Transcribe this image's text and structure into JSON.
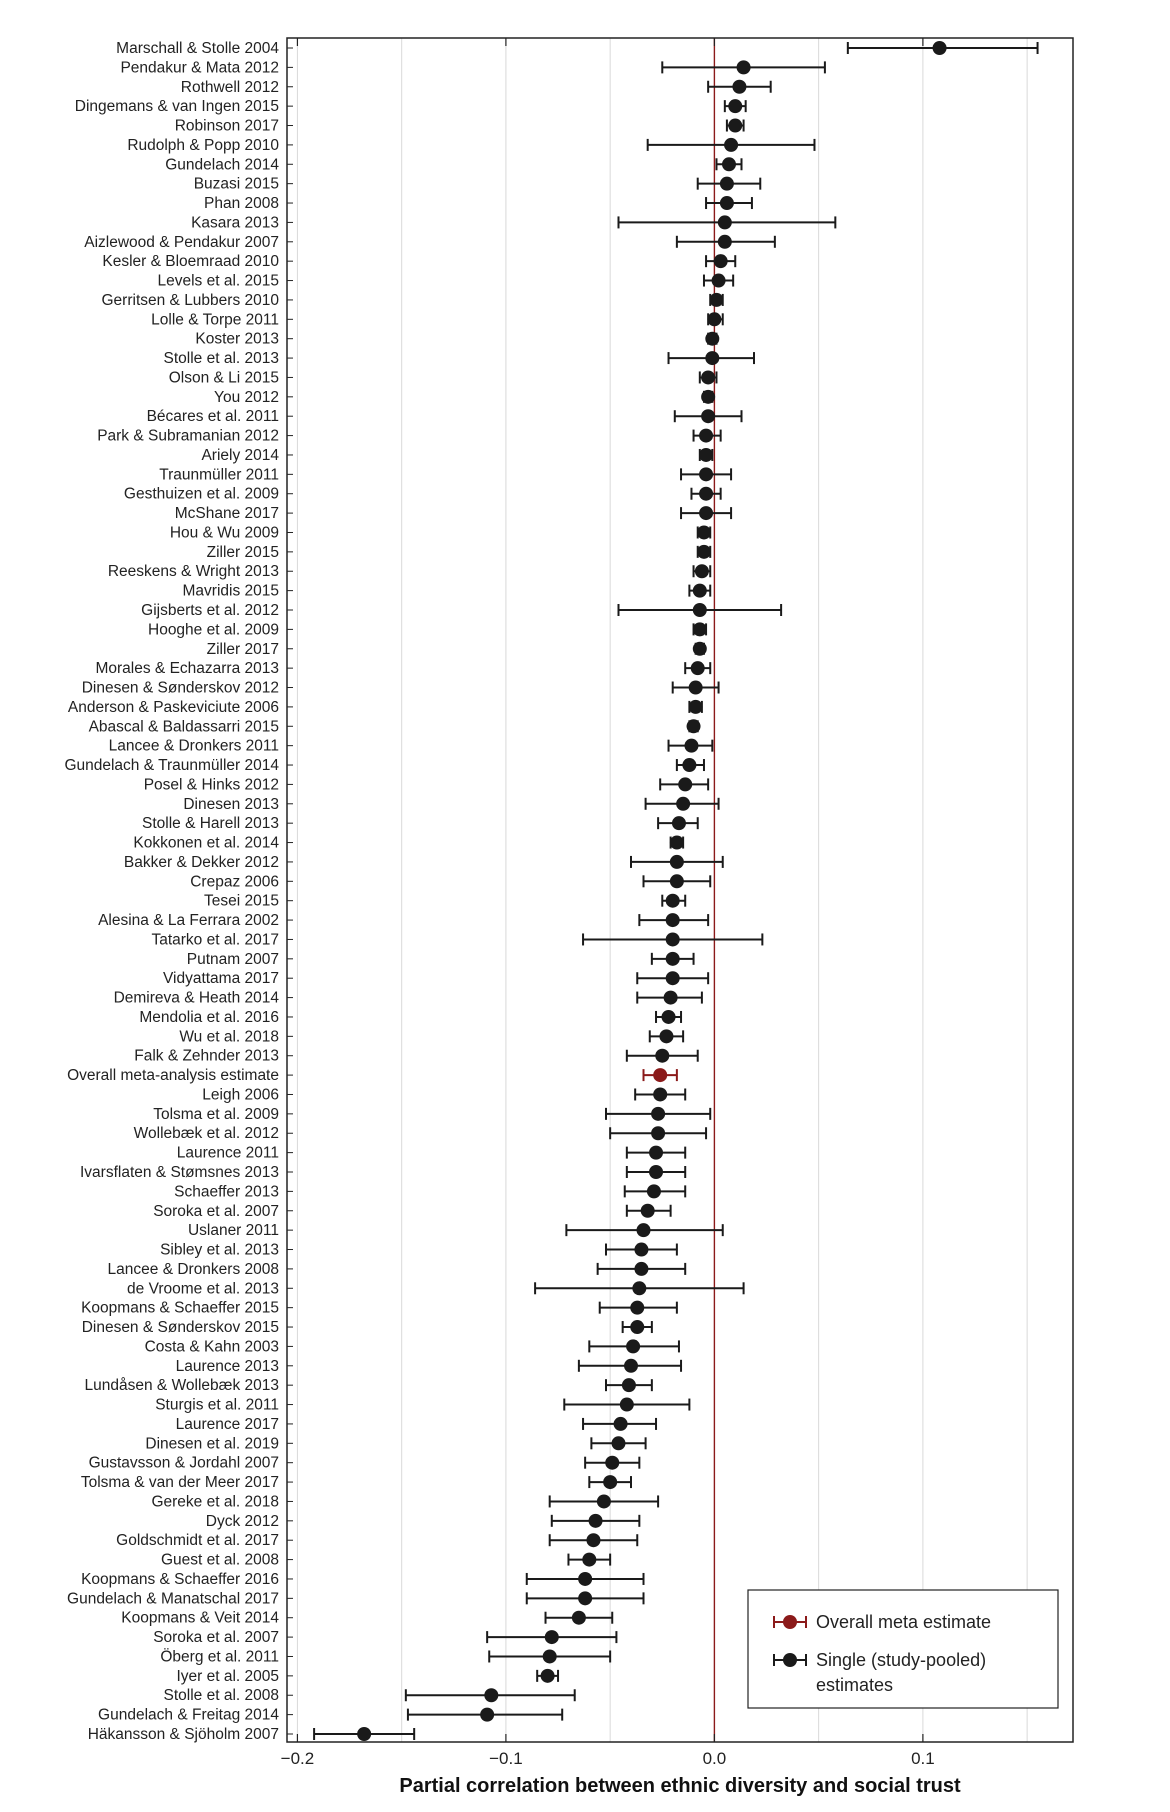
{
  "chart_data": {
    "type": "forest",
    "xlabel": "Partial correlation between ethnic diversity and social trust",
    "xlim": [
      -0.205,
      0.172
    ],
    "xticks": [
      -0.2,
      -0.1,
      0.0,
      0.1
    ],
    "xtick_labels": [
      "−0.2",
      "−0.1",
      "0.0",
      "0.1"
    ],
    "grid": true,
    "reference_line": 0.0,
    "colors": {
      "single": "#1a1a1a",
      "overall": "#8b1a1a",
      "grid": "#d9d9d9",
      "reference": "#8b1a1a"
    },
    "legend": {
      "position": "bottom-right",
      "entries": [
        {
          "label": "Overall meta estimate",
          "kind": "overall"
        },
        {
          "label": "Single (study-pooled)",
          "label2": "estimates",
          "kind": "single"
        }
      ]
    },
    "studies": [
      {
        "label": "Marschall & Stolle 2004",
        "est": 0.108,
        "lo": 0.064,
        "hi": 0.155
      },
      {
        "label": "Pendakur & Mata 2012",
        "est": 0.014,
        "lo": -0.025,
        "hi": 0.053
      },
      {
        "label": "Rothwell 2012",
        "est": 0.012,
        "lo": -0.003,
        "hi": 0.027
      },
      {
        "label": "Dingemans & van Ingen 2015",
        "est": 0.01,
        "lo": 0.005,
        "hi": 0.015
      },
      {
        "label": "Robinson 2017",
        "est": 0.01,
        "lo": 0.006,
        "hi": 0.014
      },
      {
        "label": "Rudolph & Popp 2010",
        "est": 0.008,
        "lo": -0.032,
        "hi": 0.048
      },
      {
        "label": "Gundelach 2014",
        "est": 0.007,
        "lo": 0.001,
        "hi": 0.013
      },
      {
        "label": "Buzasi 2015",
        "est": 0.006,
        "lo": -0.008,
        "hi": 0.022
      },
      {
        "label": "Phan 2008",
        "est": 0.006,
        "lo": -0.004,
        "hi": 0.018
      },
      {
        "label": "Kasara 2013",
        "est": 0.005,
        "lo": -0.046,
        "hi": 0.058
      },
      {
        "label": "Aizlewood & Pendakur 2007",
        "est": 0.005,
        "lo": -0.018,
        "hi": 0.029
      },
      {
        "label": "Kesler & Bloemraad 2010",
        "est": 0.003,
        "lo": -0.004,
        "hi": 0.01
      },
      {
        "label": "Levels et al. 2015",
        "est": 0.002,
        "lo": -0.005,
        "hi": 0.009
      },
      {
        "label": "Gerritsen & Lubbers 2010",
        "est": 0.001,
        "lo": -0.002,
        "hi": 0.004
      },
      {
        "label": "Lolle & Torpe 2011",
        "est": 0.0,
        "lo": -0.003,
        "hi": 0.004
      },
      {
        "label": "Koster 2013",
        "est": -0.001,
        "lo": -0.003,
        "hi": 0.001
      },
      {
        "label": "Stolle et al. 2013",
        "est": -0.001,
        "lo": -0.022,
        "hi": 0.019
      },
      {
        "label": "Olson & Li 2015",
        "est": -0.003,
        "lo": -0.007,
        "hi": 0.001
      },
      {
        "label": "You 2012",
        "est": -0.003,
        "lo": -0.005,
        "hi": -0.001
      },
      {
        "label": "Bécares et al. 2011",
        "est": -0.003,
        "lo": -0.019,
        "hi": 0.013
      },
      {
        "label": "Park & Subramanian 2012",
        "est": -0.004,
        "lo": -0.01,
        "hi": 0.003
      },
      {
        "label": "Ariely 2014",
        "est": -0.004,
        "lo": -0.007,
        "hi": -0.001
      },
      {
        "label": "Traunmüller 2011",
        "est": -0.004,
        "lo": -0.016,
        "hi": 0.008
      },
      {
        "label": "Gesthuizen et al. 2009",
        "est": -0.004,
        "lo": -0.011,
        "hi": 0.003
      },
      {
        "label": "McShane 2017",
        "est": -0.004,
        "lo": -0.016,
        "hi": 0.008
      },
      {
        "label": "Hou & Wu 2009",
        "est": -0.005,
        "lo": -0.008,
        "hi": -0.002
      },
      {
        "label": "Ziller 2015",
        "est": -0.005,
        "lo": -0.008,
        "hi": -0.002
      },
      {
        "label": "Reeskens & Wright 2013",
        "est": -0.006,
        "lo": -0.01,
        "hi": -0.002
      },
      {
        "label": "Mavridis 2015",
        "est": -0.007,
        "lo": -0.012,
        "hi": -0.002
      },
      {
        "label": "Gijsberts et al. 2012",
        "est": -0.007,
        "lo": -0.046,
        "hi": 0.032
      },
      {
        "label": "Hooghe et al. 2009",
        "est": -0.007,
        "lo": -0.01,
        "hi": -0.004
      },
      {
        "label": "Ziller 2017",
        "est": -0.007,
        "lo": -0.009,
        "hi": -0.005
      },
      {
        "label": "Morales & Echazarra 2013",
        "est": -0.008,
        "lo": -0.014,
        "hi": -0.002
      },
      {
        "label": "Dinesen & Sønderskov 2012",
        "est": -0.009,
        "lo": -0.02,
        "hi": 0.002
      },
      {
        "label": "Anderson & Paskeviciute 2006",
        "est": -0.009,
        "lo": -0.012,
        "hi": -0.006
      },
      {
        "label": "Abascal & Baldassarri 2015",
        "est": -0.01,
        "lo": -0.012,
        "hi": -0.008
      },
      {
        "label": "Lancee & Dronkers 2011",
        "est": -0.011,
        "lo": -0.022,
        "hi": -0.001
      },
      {
        "label": "Gundelach & Traunmüller 2014",
        "est": -0.012,
        "lo": -0.018,
        "hi": -0.005
      },
      {
        "label": "Posel & Hinks 2012",
        "est": -0.014,
        "lo": -0.026,
        "hi": -0.003
      },
      {
        "label": "Dinesen 2013",
        "est": -0.015,
        "lo": -0.033,
        "hi": 0.002
      },
      {
        "label": "Stolle & Harell 2013",
        "est": -0.017,
        "lo": -0.027,
        "hi": -0.008
      },
      {
        "label": "Kokkonen et al. 2014",
        "est": -0.018,
        "lo": -0.021,
        "hi": -0.015
      },
      {
        "label": "Bakker & Dekker 2012",
        "est": -0.018,
        "lo": -0.04,
        "hi": 0.004
      },
      {
        "label": "Crepaz 2006",
        "est": -0.018,
        "lo": -0.034,
        "hi": -0.002
      },
      {
        "label": "Tesei 2015",
        "est": -0.02,
        "lo": -0.025,
        "hi": -0.014
      },
      {
        "label": "Alesina & La Ferrara 2002",
        "est": -0.02,
        "lo": -0.036,
        "hi": -0.003
      },
      {
        "label": "Tatarko et al. 2017",
        "est": -0.02,
        "lo": -0.063,
        "hi": 0.023
      },
      {
        "label": "Putnam 2007",
        "est": -0.02,
        "lo": -0.03,
        "hi": -0.01
      },
      {
        "label": "Vidyattama 2017",
        "est": -0.02,
        "lo": -0.037,
        "hi": -0.003
      },
      {
        "label": "Demireva & Heath 2014",
        "est": -0.021,
        "lo": -0.037,
        "hi": -0.006
      },
      {
        "label": "Mendolia et al. 2016",
        "est": -0.022,
        "lo": -0.028,
        "hi": -0.016
      },
      {
        "label": "Wu et al. 2018",
        "est": -0.023,
        "lo": -0.031,
        "hi": -0.015
      },
      {
        "label": "Falk & Zehnder 2013",
        "est": -0.025,
        "lo": -0.042,
        "hi": -0.008
      },
      {
        "label": "Overall meta-analysis estimate",
        "est": -0.026,
        "lo": -0.034,
        "hi": -0.018,
        "overall": true
      },
      {
        "label": "Leigh 2006",
        "est": -0.026,
        "lo": -0.038,
        "hi": -0.014
      },
      {
        "label": "Tolsma et al. 2009",
        "est": -0.027,
        "lo": -0.052,
        "hi": -0.002
      },
      {
        "label": "Wollebæk et al. 2012",
        "est": -0.027,
        "lo": -0.05,
        "hi": -0.004
      },
      {
        "label": "Laurence 2011",
        "est": -0.028,
        "lo": -0.042,
        "hi": -0.014
      },
      {
        "label": "Ivarsflaten & Stømsnes 2013",
        "est": -0.028,
        "lo": -0.042,
        "hi": -0.014
      },
      {
        "label": "Schaeffer 2013",
        "est": -0.029,
        "lo": -0.043,
        "hi": -0.014
      },
      {
        "label": "Soroka et al. 2007",
        "est": -0.032,
        "lo": -0.042,
        "hi": -0.021
      },
      {
        "label": "Uslaner 2011",
        "est": -0.034,
        "lo": -0.071,
        "hi": 0.004
      },
      {
        "label": "Sibley et al. 2013",
        "est": -0.035,
        "lo": -0.052,
        "hi": -0.018
      },
      {
        "label": "Lancee & Dronkers 2008",
        "est": -0.035,
        "lo": -0.056,
        "hi": -0.014
      },
      {
        "label": "de Vroome et al. 2013",
        "est": -0.036,
        "lo": -0.086,
        "hi": 0.014
      },
      {
        "label": "Koopmans & Schaeffer 2015",
        "est": -0.037,
        "lo": -0.055,
        "hi": -0.018
      },
      {
        "label": "Dinesen & Sønderskov 2015",
        "est": -0.037,
        "lo": -0.044,
        "hi": -0.03
      },
      {
        "label": "Costa & Kahn 2003",
        "est": -0.039,
        "lo": -0.06,
        "hi": -0.017
      },
      {
        "label": "Laurence 2013",
        "est": -0.04,
        "lo": -0.065,
        "hi": -0.016
      },
      {
        "label": "Lundåsen & Wollebæk 2013",
        "est": -0.041,
        "lo": -0.052,
        "hi": -0.03
      },
      {
        "label": "Sturgis et al. 2011",
        "est": -0.042,
        "lo": -0.072,
        "hi": -0.012
      },
      {
        "label": "Laurence 2017",
        "est": -0.045,
        "lo": -0.063,
        "hi": -0.028
      },
      {
        "label": "Dinesen et al. 2019",
        "est": -0.046,
        "lo": -0.059,
        "hi": -0.033
      },
      {
        "label": "Gustavsson & Jordahl 2007",
        "est": -0.049,
        "lo": -0.062,
        "hi": -0.036
      },
      {
        "label": "Tolsma & van der Meer 2017",
        "est": -0.05,
        "lo": -0.06,
        "hi": -0.04
      },
      {
        "label": "Gereke et al. 2018",
        "est": -0.053,
        "lo": -0.079,
        "hi": -0.027
      },
      {
        "label": "Dyck 2012",
        "est": -0.057,
        "lo": -0.078,
        "hi": -0.036
      },
      {
        "label": "Goldschmidt et al. 2017",
        "est": -0.058,
        "lo": -0.079,
        "hi": -0.037
      },
      {
        "label": "Guest et al. 2008",
        "est": -0.06,
        "lo": -0.07,
        "hi": -0.05
      },
      {
        "label": "Koopmans & Schaeffer 2016",
        "est": -0.062,
        "lo": -0.09,
        "hi": -0.034
      },
      {
        "label": "Gundelach & Manatschal 2017",
        "est": -0.062,
        "lo": -0.09,
        "hi": -0.034
      },
      {
        "label": "Koopmans & Veit 2014",
        "est": -0.065,
        "lo": -0.081,
        "hi": -0.049
      },
      {
        "label": "Soroka et al. 2007",
        "est": -0.078,
        "lo": -0.109,
        "hi": -0.047
      },
      {
        "label": "Öberg et al. 2011",
        "est": -0.079,
        "lo": -0.108,
        "hi": -0.05
      },
      {
        "label": "Iyer et al. 2005",
        "est": -0.08,
        "lo": -0.085,
        "hi": -0.075
      },
      {
        "label": "Stolle et al. 2008",
        "est": -0.107,
        "lo": -0.148,
        "hi": -0.067
      },
      {
        "label": "Gundelach & Freitag 2014",
        "est": -0.109,
        "lo": -0.147,
        "hi": -0.073
      },
      {
        "label": "Häkansson & Sjöholm 2007",
        "est": -0.168,
        "lo": -0.192,
        "hi": -0.144
      }
    ]
  }
}
